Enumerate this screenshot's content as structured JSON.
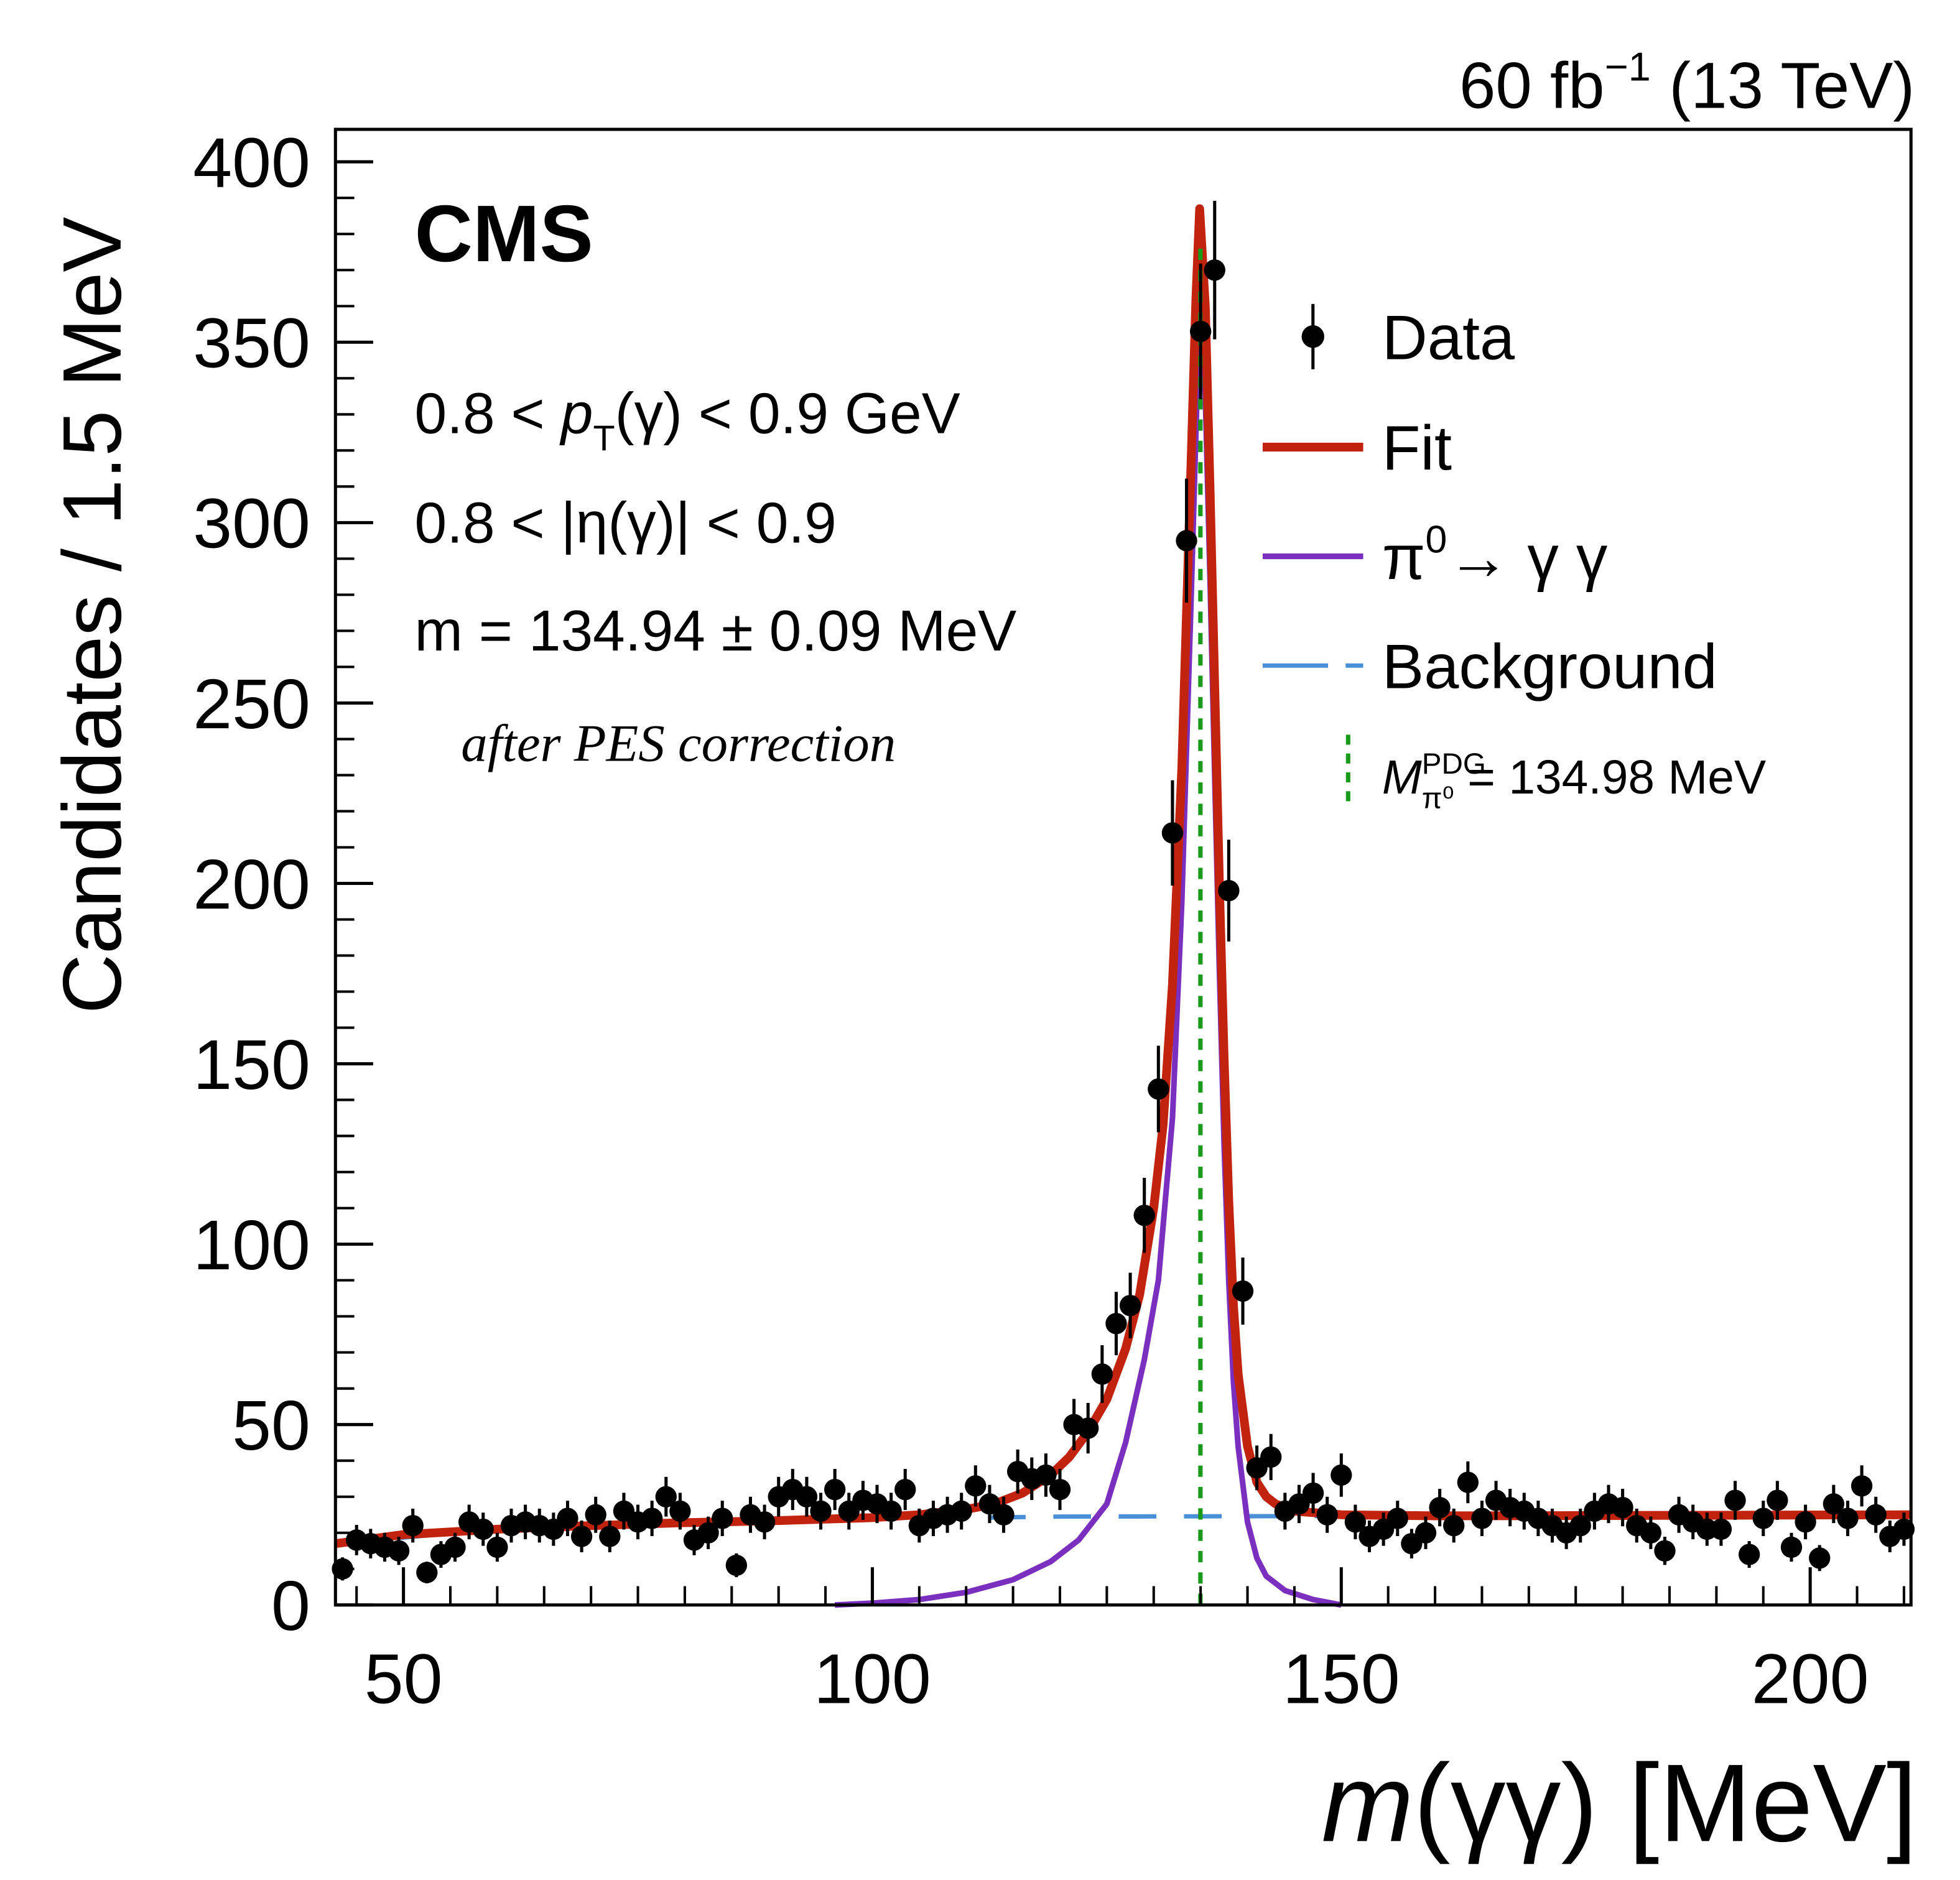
{
  "chart_data": {
    "type": "scatter",
    "lumi": [
      {
        "text": "60 fb"
      },
      {
        "text": "−1",
        "style": "sup"
      },
      {
        "text": "(13 TeV)",
        "space": true
      }
    ],
    "experiment": "CMS",
    "annotations": [
      [
        {
          "text": "0.8 <"
        },
        {
          "text": "p",
          "style": "italic",
          "space": true
        },
        {
          "text": "T",
          "style": "sub"
        },
        {
          "text": "(γ) < 0.9 GeV"
        }
      ],
      [
        {
          "text": "0.8 < |η(γ)| < 0.9"
        }
      ],
      [
        {
          "text": "m = 134.94 ± 0.09 MeV"
        }
      ],
      [
        {
          "text": "after PES correction",
          "style": "serif-italic"
        }
      ]
    ],
    "y_label": "Candidates / 1.5 MeV",
    "x_label": [
      {
        "text": "m",
        "style": "italic"
      },
      {
        "text": "(γγ) [MeV]"
      }
    ],
    "xlim": [
      42.75,
      210.75
    ],
    "ylim": [
      0,
      409
    ],
    "xticks": [
      50,
      100,
      150,
      200
    ],
    "yticks": [
      0,
      50,
      100,
      150,
      200,
      250,
      300,
      350,
      400
    ],
    "xminor_step": 5,
    "yminor_step": 10,
    "series": [
      {
        "name": "Data",
        "kind": "points",
        "color": "#000000",
        "x": [
          43.5,
          45,
          46.5,
          48,
          49.5,
          51,
          52.5,
          54,
          55.5,
          57,
          58.5,
          60,
          61.5,
          63,
          64.5,
          66,
          67.5,
          69,
          70.5,
          72,
          73.5,
          75,
          76.5,
          78,
          79.5,
          81,
          82.5,
          84,
          85.5,
          87,
          88.5,
          90,
          91.5,
          93,
          94.5,
          96,
          97.5,
          99,
          100.5,
          102,
          103.5,
          105,
          106.5,
          108,
          109.5,
          111,
          112.5,
          114,
          115.5,
          117,
          118.5,
          120,
          121.5,
          123,
          124.5,
          126,
          127.5,
          129,
          130.5,
          132,
          133.5,
          135,
          136.5,
          138,
          139.5,
          141,
          142.5,
          144,
          145.5,
          147,
          148.5,
          150,
          151.5,
          153,
          154.5,
          156,
          157.5,
          159,
          160.5,
          162,
          163.5,
          165,
          166.5,
          168,
          169.5,
          171,
          172.5,
          174,
          175.5,
          177,
          178.5,
          180,
          181.5,
          183,
          184.5,
          186,
          187.5,
          189,
          190.5,
          192,
          193.5,
          195,
          196.5,
          198,
          199.5,
          201,
          202.5,
          204,
          205.5,
          207,
          208.5,
          210
        ],
        "values": [
          10,
          18,
          17,
          16,
          15,
          22,
          9,
          14,
          16,
          23,
          21,
          16,
          22,
          23,
          22,
          21,
          24,
          19,
          25,
          19,
          26,
          23,
          24,
          30,
          26,
          18,
          20,
          24,
          11,
          25,
          23,
          30,
          32,
          30,
          26,
          32,
          26,
          29,
          28,
          26,
          32,
          22,
          24,
          25,
          26,
          33,
          28,
          25,
          37,
          35,
          36,
          32,
          50,
          49,
          64,
          78,
          83,
          108,
          143,
          214,
          295,
          353,
          370,
          198,
          87,
          38,
          41,
          26,
          28,
          31,
          25,
          36,
          23,
          19,
          21,
          24,
          17,
          20,
          27,
          22,
          34,
          24,
          29,
          27,
          26,
          24,
          22,
          20,
          22,
          26,
          28,
          27,
          22,
          20,
          15,
          25,
          23,
          21,
          21,
          29,
          14,
          24,
          29,
          16,
          23,
          13,
          28,
          24,
          33,
          25,
          19,
          21
        ],
        "errors": [
          3.2,
          4.2,
          4.1,
          4,
          3.9,
          4.7,
          3,
          3.7,
          4,
          4.8,
          4.6,
          4,
          4.7,
          4.8,
          4.7,
          4.6,
          4.9,
          4.4,
          5,
          4.4,
          5.1,
          4.8,
          4.9,
          5.5,
          5.1,
          4.2,
          4.5,
          4.9,
          3.3,
          5,
          4.8,
          5.5,
          5.7,
          5.5,
          5.1,
          5.7,
          5.1,
          5.4,
          5.3,
          5.1,
          5.7,
          4.7,
          4.9,
          5,
          5.1,
          5.7,
          5.3,
          5,
          6.1,
          5.9,
          6,
          5.7,
          7.1,
          7,
          8,
          8.8,
          9.1,
          10.4,
          12,
          14.6,
          17.2,
          18.8,
          19.2,
          14.1,
          9.3,
          6.2,
          6.4,
          5.1,
          5.3,
          5.6,
          5,
          6,
          4.8,
          4.4,
          4.6,
          4.9,
          4.1,
          4.5,
          5.2,
          4.7,
          5.8,
          4.9,
          5.4,
          5.2,
          5.1,
          4.9,
          4.7,
          4.5,
          4.7,
          5.1,
          5.3,
          5.2,
          4.7,
          4.5,
          3.9,
          5,
          4.8,
          4.6,
          4.6,
          5.4,
          3.7,
          4.9,
          5.4,
          4,
          4.8,
          3.6,
          5.3,
          4.9,
          5.7,
          5,
          4.4,
          4.6
        ]
      },
      {
        "name": "Fit",
        "kind": "line",
        "color": "#c1230f",
        "x": [
          42.75,
          50,
          60,
          70,
          80,
          90,
          100,
          105,
          110,
          113,
          116,
          119,
          121,
          123,
          125,
          127,
          128.5,
          130,
          131,
          132,
          133,
          134,
          134.5,
          134.9,
          135.5,
          136,
          136.5,
          137,
          137.5,
          138,
          138.5,
          139,
          140,
          141,
          142,
          143,
          145,
          150,
          160,
          180,
          210.75
        ],
        "values": [
          17,
          19.5,
          21,
          22,
          22.8,
          23.4,
          24.2,
          25,
          26.5,
          28,
          31,
          36,
          41,
          48,
          57,
          71,
          86,
          110,
          133,
          172,
          232,
          318,
          362,
          387,
          360,
          310,
          255,
          200,
          152,
          112,
          83,
          64,
          44,
          34,
          30,
          28,
          26,
          25,
          24.7,
          24.8,
          25
        ]
      },
      {
        "name": [
          {
            "text": "π"
          },
          {
            "text": "0",
            "style": "sup"
          },
          {
            "text": "→ γ γ"
          }
        ],
        "kind": "line-thin",
        "color": "#7b2fbe",
        "x": [
          96,
          100,
          105,
          110,
          115,
          119,
          122,
          125,
          127,
          129,
          130.5,
          132,
          133,
          134,
          134.5,
          134.9,
          135.5,
          136,
          136.5,
          137,
          137.5,
          138,
          138.5,
          139,
          140,
          141,
          142,
          144,
          147,
          150
        ],
        "values": [
          0,
          0.5,
          1.5,
          3.5,
          7,
          12,
          18,
          28,
          45,
          68,
          90,
          135,
          195,
          280,
          325,
          360,
          335,
          285,
          230,
          176,
          128,
          90,
          62,
          44,
          23,
          13,
          8,
          4,
          1.5,
          0
        ]
      },
      {
        "name": "Background",
        "kind": "dashed",
        "color": "#4a90d9",
        "x": [
          42.75,
          60,
          80,
          100,
          120,
          140,
          160,
          180,
          210.75
        ],
        "values": [
          17,
          21,
          22.8,
          23.8,
          24.5,
          24.6,
          24.7,
          24.8,
          25
        ]
      }
    ],
    "reference": {
      "x": 134.98,
      "color": "#1a9a1a",
      "label": [
        {
          "text": "M",
          "style": "italic"
        },
        {
          "text": "PDG",
          "style": "sup"
        },
        {
          "text": "π⁰",
          "style": "sub"
        },
        {
          "text": "= 134.98 MeV",
          "space": true
        }
      ]
    }
  }
}
